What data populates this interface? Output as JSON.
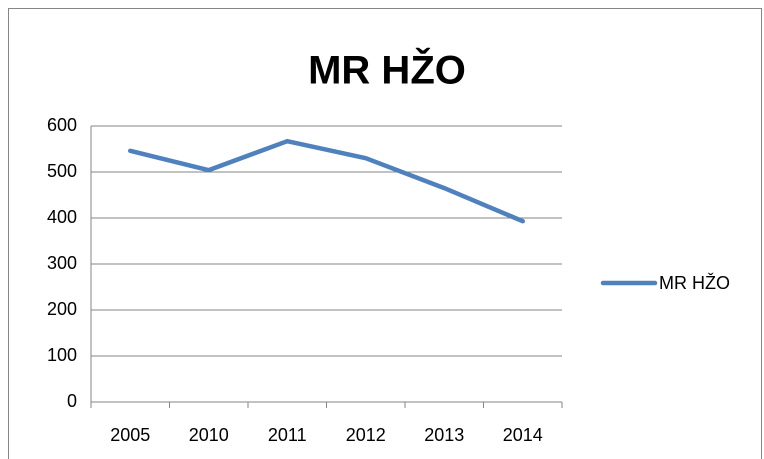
{
  "chart_data": {
    "type": "line",
    "title": "MR HŽO",
    "categories": [
      "2005",
      "2010",
      "2011",
      "2012",
      "2013",
      "2014"
    ],
    "series": [
      {
        "name": "MR HŽO",
        "color": "#4f81bd",
        "values": [
          546,
          504,
          567,
          530,
          465,
          393
        ]
      }
    ],
    "ylim": [
      0,
      600
    ],
    "yticks": [
      0,
      100,
      200,
      300,
      400,
      500,
      600
    ],
    "grid": true,
    "legend": "right"
  }
}
